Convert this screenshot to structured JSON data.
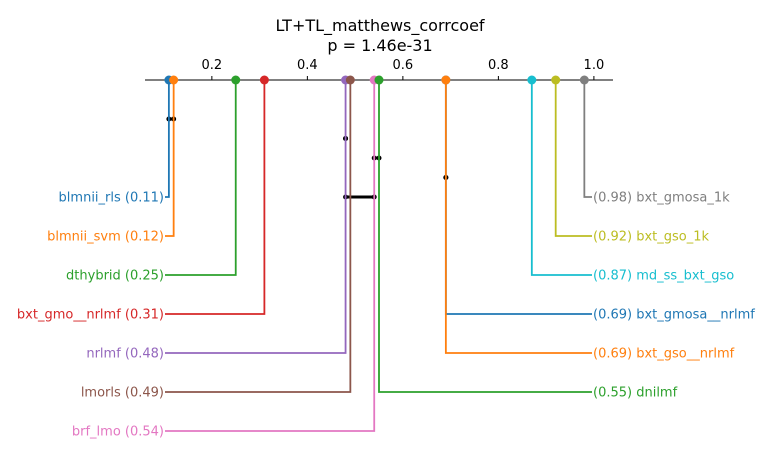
{
  "title": "LT+TL_matthews_corrcoef",
  "subtitle": "p = 1.46e-31",
  "chart_data": {
    "type": "critical-difference",
    "title": "LT+TL_matthews_corrcoef",
    "subtitle": "p = 1.46e-31",
    "axis": {
      "range": [
        0.06,
        1.04
      ],
      "ticks": [
        0.2,
        0.4,
        0.6,
        0.8,
        1.0
      ],
      "tick_labels": [
        "0.2",
        "0.4",
        "0.6",
        "0.8",
        "1.0"
      ]
    },
    "series": [
      {
        "name": "blmnii_rls",
        "value": 0.11,
        "value_label": "0.11",
        "color": "#1f77b4",
        "side": "left"
      },
      {
        "name": "blmnii_svm",
        "value": 0.12,
        "value_label": "0.12",
        "color": "#ff7f0e",
        "side": "left"
      },
      {
        "name": "dthybrid",
        "value": 0.25,
        "value_label": "0.25",
        "color": "#2ca02c",
        "side": "left"
      },
      {
        "name": "bxt_gmo__nrlmf",
        "value": 0.31,
        "value_label": "0.31",
        "color": "#d62728",
        "side": "left"
      },
      {
        "name": "nrlmf",
        "value": 0.48,
        "value_label": "0.48",
        "color": "#9467bd",
        "side": "left"
      },
      {
        "name": "lmorls",
        "value": 0.49,
        "value_label": "0.49",
        "color": "#8c564b",
        "side": "left"
      },
      {
        "name": "brf_lmo",
        "value": 0.54,
        "value_label": "0.54",
        "color": "#e377c2",
        "side": "left"
      },
      {
        "name": "bxt_gmosa_1k",
        "value": 0.98,
        "value_label": "0.98",
        "color": "#7f7f7f",
        "side": "right"
      },
      {
        "name": "bxt_gso_1k",
        "value": 0.92,
        "value_label": "0.92",
        "color": "#bcbd22",
        "side": "right"
      },
      {
        "name": "md_ss_bxt_gso",
        "value": 0.87,
        "value_label": "0.87",
        "color": "#17becf",
        "side": "right"
      },
      {
        "name": "bxt_gmosa__nrlmf",
        "value": 0.69,
        "value_label": "0.69",
        "color": "#1f77b4",
        "side": "right"
      },
      {
        "name": "bxt_gso__nrlmf",
        "value": 0.69,
        "value_label": "0.69",
        "color": "#ff7f0e",
        "side": "right"
      },
      {
        "name": "dnilmf",
        "value": 0.55,
        "value_label": "0.55",
        "color": "#2ca02c",
        "side": "right"
      }
    ],
    "groups": [
      {
        "from": 0.11,
        "to": 0.12
      },
      {
        "from": 0.48,
        "to": 0.48
      },
      {
        "from": 0.54,
        "to": 0.55
      },
      {
        "from": 0.69,
        "to": 0.69
      },
      {
        "from": 0.48,
        "to": 0.54
      }
    ]
  }
}
